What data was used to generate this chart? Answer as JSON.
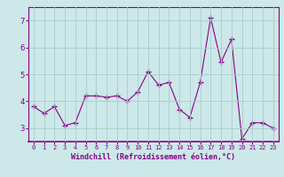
{
  "x": [
    0,
    1,
    2,
    3,
    4,
    5,
    6,
    7,
    8,
    9,
    10,
    11,
    12,
    13,
    14,
    15,
    16,
    17,
    18,
    19,
    20,
    21,
    22,
    23
  ],
  "y": [
    3.8,
    3.55,
    3.8,
    3.1,
    3.2,
    4.2,
    4.2,
    4.15,
    4.2,
    4.0,
    4.35,
    5.1,
    4.6,
    4.7,
    3.7,
    3.4,
    4.7,
    7.1,
    5.45,
    6.3,
    2.6,
    3.2,
    3.2,
    3.0
  ],
  "line_color": "#880088",
  "marker": "+",
  "marker_size": 4,
  "bg_color": "#cce8e8",
  "grid_color": "#aacccc",
  "xlabel": "Windchill (Refroidissement éolien,°C)",
  "xlabel_color": "#880088",
  "tick_color": "#880088",
  "ylim": [
    2.5,
    7.5
  ],
  "yticks": [
    3,
    4,
    5,
    6,
    7
  ],
  "xticks": [
    0,
    1,
    2,
    3,
    4,
    5,
    6,
    7,
    8,
    9,
    10,
    11,
    12,
    13,
    14,
    15,
    16,
    17,
    18,
    19,
    20,
    21,
    22,
    23
  ],
  "spine_color": "#880088"
}
